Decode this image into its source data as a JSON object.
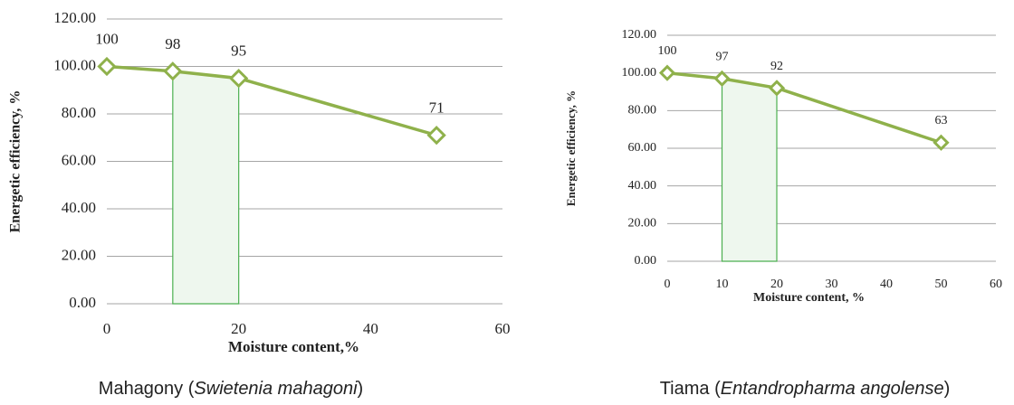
{
  "chart_data": [
    {
      "type": "line",
      "ylabel": "Energetic efficiency, %",
      "xlabel": "Moisture content,%",
      "x": [
        0,
        10,
        20,
        50
      ],
      "values": [
        100,
        98,
        95,
        71
      ],
      "color": "#8fb14b",
      "highlight_x": [
        10,
        20
      ],
      "xlim": [
        0,
        60
      ],
      "xticks": [
        0,
        20,
        40,
        60
      ],
      "ylim": [
        0,
        120
      ],
      "yticks": [
        {
          "value": 0,
          "label": "0.00"
        },
        {
          "value": 20,
          "label": "20.00"
        },
        {
          "value": 40,
          "label": "40.00"
        },
        {
          "value": 60,
          "label": "60.00"
        },
        {
          "value": 80,
          "label": "80.00"
        },
        {
          "value": 100,
          "label": "100.00"
        },
        {
          "value": 120,
          "label": "120.00"
        }
      ],
      "grid": true,
      "caption": {
        "prefix": "Mahagony (",
        "italic": "Swietenia mahagoni",
        "suffix": ")"
      }
    },
    {
      "type": "line",
      "ylabel": "Energetic efficiency, %",
      "xlabel": "Moisture content, %",
      "x": [
        0,
        10,
        20,
        50
      ],
      "values": [
        100,
        97,
        92,
        63
      ],
      "color": "#8fb14b",
      "highlight_x": [
        10,
        20
      ],
      "xlim": [
        0,
        60
      ],
      "xticks": [
        0,
        10,
        20,
        30,
        40,
        50,
        60
      ],
      "ylim": [
        0,
        120
      ],
      "yticks": [
        {
          "value": 0,
          "label": "0.00"
        },
        {
          "value": 20,
          "label": "20.00"
        },
        {
          "value": 40,
          "label": "40.00"
        },
        {
          "value": 60,
          "label": "60.00"
        },
        {
          "value": 80,
          "label": "80.00"
        },
        {
          "value": 100,
          "label": "100.00"
        },
        {
          "value": 120,
          "label": "120.00"
        }
      ],
      "grid": true,
      "caption": {
        "prefix": "Tiama (",
        "italic": "Entandropharma angolense",
        "suffix": ")"
      }
    }
  ]
}
